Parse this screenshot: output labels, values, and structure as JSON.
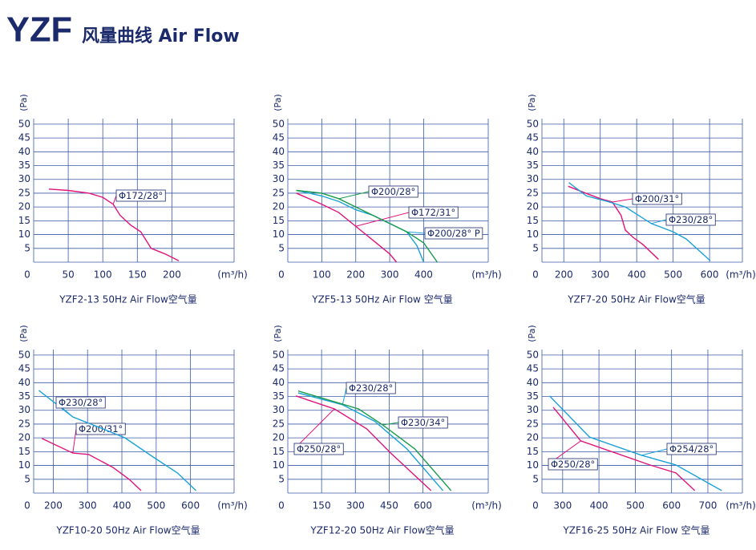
{
  "header": {
    "brand": "YZF",
    "title": "风量曲线 Air Flow"
  },
  "chart_data": [
    {
      "type": "line",
      "subtitle": "YZF2-13 50Hz  Air Flow空气量",
      "y_label": "(Pa)",
      "x_label": "(m³/h)",
      "origin_label": "0",
      "xlim": [
        0,
        290
      ],
      "ylim": [
        0,
        52
      ],
      "xticks": [
        50,
        100,
        150,
        200
      ],
      "yticks": [
        5,
        10,
        15,
        20,
        25,
        30,
        35,
        40,
        45,
        50
      ],
      "grid": true,
      "series": [
        {
          "name": "Φ172/28°",
          "color": "#e0147a",
          "x": [
            22,
            50,
            80,
            100,
            115,
            125,
            140,
            155,
            170,
            190,
            210
          ],
          "values": [
            26.5,
            26,
            25,
            23.5,
            21,
            17,
            13.5,
            11,
            5,
            3,
            0.5
          ]
        }
      ]
    },
    {
      "type": "line",
      "subtitle": "YZF5-13 50Hz  Air Flow 空气量",
      "y_label": "(Pa)",
      "x_label": "(m³/h)",
      "origin_label": "0",
      "xlim": [
        0,
        590
      ],
      "ylim": [
        0,
        52
      ],
      "xticks": [
        100,
        200,
        300,
        400
      ],
      "yticks": [
        5,
        10,
        15,
        20,
        25,
        30,
        35,
        40,
        45,
        50
      ],
      "grid": true,
      "series": [
        {
          "name": "Φ172/31°",
          "color": "#e0147a",
          "x": [
            25,
            100,
            150,
            200,
            250,
            300,
            320
          ],
          "values": [
            25,
            21,
            18,
            13,
            8,
            3,
            0
          ]
        },
        {
          "name": "Φ200/28° P",
          "color": "#1ba1d8",
          "x": [
            25,
            100,
            150,
            200,
            250,
            300,
            350,
            380,
            400
          ],
          "values": [
            26,
            24,
            22,
            19,
            17,
            14,
            11,
            6,
            0
          ]
        },
        {
          "name": "Φ200/28°",
          "color": "#1a9a4a",
          "x": [
            25,
            100,
            150,
            200,
            250,
            300,
            350,
            400,
            440
          ],
          "values": [
            26,
            25,
            23,
            20,
            17,
            14,
            11,
            7,
            0
          ]
        }
      ]
    },
    {
      "type": "line",
      "subtitle": "YZF7-20 50Hz  Air Flow空气量",
      "y_label": "(Pa)",
      "x_label": "(m³/h)",
      "origin_label": "0",
      "xlim": [
        140,
        690
      ],
      "ylim": [
        0,
        52
      ],
      "xticks": [
        200,
        300,
        400,
        500,
        600
      ],
      "yticks": [
        5,
        10,
        15,
        20,
        25,
        30,
        35,
        40,
        45,
        50
      ],
      "grid": true,
      "series": [
        {
          "name": "Φ200/31°",
          "color": "#e0147a",
          "x": [
            212,
            260,
            300,
            333,
            357,
            369,
            390,
            417,
            460
          ],
          "values": [
            27.5,
            25,
            23,
            21.8,
            17,
            11.6,
            9,
            6.4,
            1
          ]
        },
        {
          "name": "Φ230/28°",
          "color": "#1ba1d8",
          "x": [
            214,
            262,
            320,
            369,
            440,
            500,
            536,
            602
          ],
          "values": [
            28.8,
            24,
            22,
            20,
            14,
            11,
            8.4,
            0.5
          ]
        }
      ]
    },
    {
      "type": "line",
      "subtitle": "YZF10-20 50Hz  Air Flow空气量",
      "y_label": "(Pa)",
      "x_label": "(m³/h)",
      "origin_label": "0",
      "xlim": [
        143,
        727
      ],
      "ylim": [
        0,
        52
      ],
      "xticks": [
        200,
        300,
        400,
        500,
        600
      ],
      "yticks": [
        5,
        10,
        15,
        20,
        25,
        30,
        35,
        40,
        45,
        50
      ],
      "grid": true,
      "series": [
        {
          "name": "Φ200/31°",
          "color": "#e0147a",
          "x": [
            167,
            257,
            303,
            374,
            421,
            456
          ],
          "values": [
            19.8,
            14.5,
            14,
            9.3,
            5,
            0.9
          ]
        },
        {
          "name": "Φ230/28°",
          "color": "#1ba1d8",
          "x": [
            158,
            257,
            350,
            409,
            492,
            562,
            616
          ],
          "values": [
            37.2,
            27.6,
            23,
            20,
            13,
            7.3,
            0.9
          ]
        }
      ]
    },
    {
      "type": "line",
      "subtitle": "YZF12-20 50Hz  Air Flow空气量",
      "y_label": "(Pa)",
      "x_label": "(m³/h)",
      "origin_label": "0",
      "xlim": [
        0,
        890
      ],
      "ylim": [
        0,
        52
      ],
      "xticks": [
        150,
        300,
        450,
        600
      ],
      "yticks": [
        5,
        10,
        15,
        20,
        25,
        30,
        35,
        40,
        45,
        50
      ],
      "grid": true,
      "series": [
        {
          "name": "Φ250/28°",
          "color": "#e0147a",
          "x": [
            36,
            207,
            350,
            457,
            636
          ],
          "values": [
            35.2,
            30.5,
            23.3,
            14.5,
            0.9
          ]
        },
        {
          "name": "Φ230/28°",
          "color": "#1ba1d8",
          "x": [
            46,
            243,
            386,
            529,
            689
          ],
          "values": [
            36.3,
            32,
            26,
            16,
            0.9
          ]
        },
        {
          "name": "Φ230/34°",
          "color": "#1a9a4a",
          "x": [
            46,
            314,
            421,
            564,
            725
          ],
          "values": [
            37,
            30.5,
            24.7,
            16,
            0.9
          ]
        }
      ]
    },
    {
      "type": "line",
      "subtitle": "YZF16-25 50Hz  Air Flow 空气量",
      "y_label": "(Pa)",
      "x_label": "(m³/h)",
      "origin_label": "0",
      "xlim": [
        243,
        795
      ],
      "ylim": [
        0,
        52
      ],
      "xticks": [
        300,
        400,
        500,
        600,
        700
      ],
      "yticks": [
        5,
        10,
        15,
        20,
        25,
        30,
        35,
        40,
        45,
        50
      ],
      "grid": true,
      "series": [
        {
          "name": "Φ250/28°",
          "color": "#e0147a",
          "x": [
            274,
            350,
            540,
            612,
            664
          ],
          "values": [
            31.1,
            18.9,
            10.2,
            7.3,
            0.9
          ]
        },
        {
          "name": "Φ254/28°",
          "color": "#1ba1d8",
          "x": [
            264,
            374,
            517,
            612,
            738
          ],
          "values": [
            35.2,
            20.3,
            13.7,
            10.2,
            0.9
          ]
        }
      ]
    }
  ]
}
